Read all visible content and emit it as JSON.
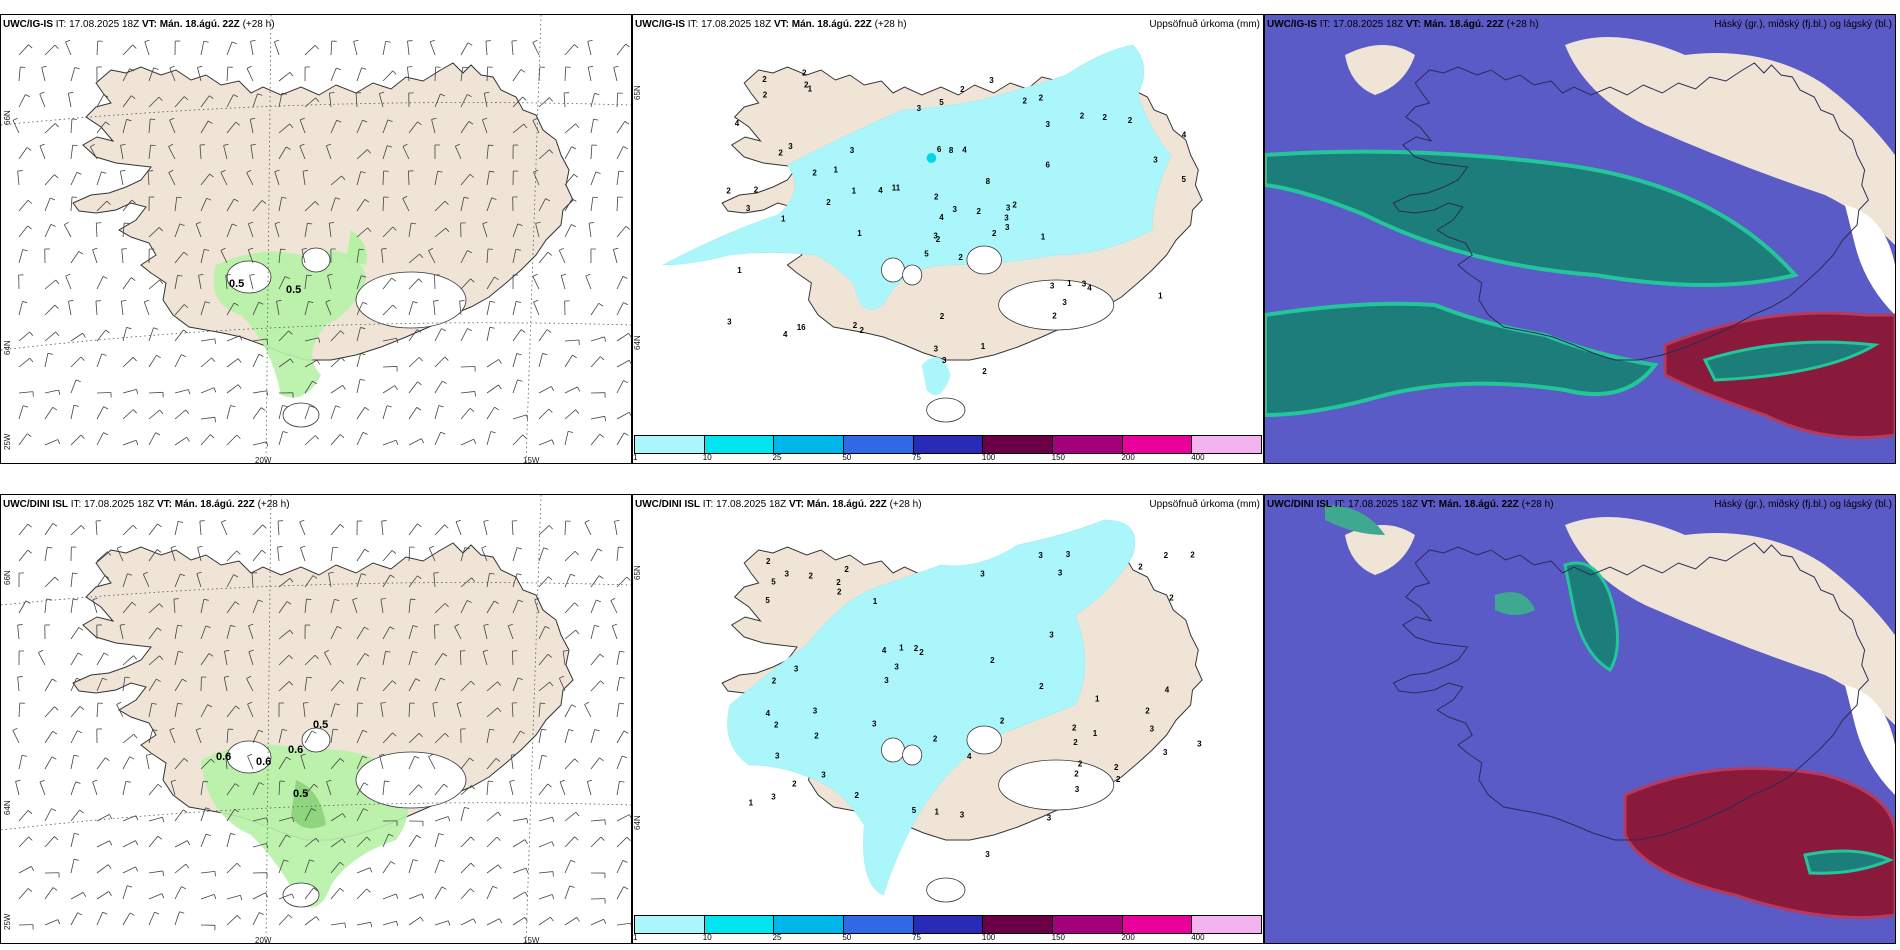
{
  "panels": {
    "top_wind": {
      "model": "UWC/IG-IS",
      "init": "IT: 17.08.2025 18Z",
      "valid": "VT: Mán. 18.ágú. 22Z",
      "lead": "(+28 h)",
      "lon_labels": [
        "20W",
        "15W"
      ],
      "lat_labels": [
        "66N",
        "64N",
        "25W"
      ],
      "values": [
        "0.5",
        "0.5"
      ]
    },
    "top_precip": {
      "model": "UWC/IG-IS",
      "init": "IT: 17.08.2025 18Z",
      "valid": "VT: Mán. 18.ágú. 22Z",
      "lead": "(+28 h)",
      "right_title": "Uppsöfnuð úrkoma (mm)",
      "lat_labels": [
        "65N",
        "64N"
      ],
      "values": [
        "2",
        "2",
        "2",
        "3",
        "2",
        "2",
        "4",
        "3",
        "2",
        "1",
        "1",
        "4",
        "5",
        "6",
        "6",
        "8",
        "16",
        "11",
        "8",
        "2",
        "4",
        "3",
        "5",
        "3",
        "3",
        "5",
        "3",
        "3",
        "4",
        "3",
        "2",
        "2",
        "3",
        "3",
        "4",
        "2",
        "2",
        "2",
        "3",
        "3",
        "3",
        "4",
        "3",
        "4",
        "3",
        "2",
        "2",
        "1",
        "2",
        "2",
        "1",
        "2",
        "1",
        "2",
        "2",
        "2",
        "3",
        "3",
        "3",
        "2",
        "1",
        "1",
        "2",
        "2",
        "1",
        "2",
        "2",
        "2",
        "1",
        "1"
      ]
    },
    "top_cloud": {
      "model": "UWC/IG-IS",
      "init": "IT: 17.08.2025 18Z",
      "valid": "VT: Mán. 18.ágú. 22Z",
      "lead": "(+28 h)",
      "right_title": "Háský (gr.), miðský (fj.bl.) og lágský (bl.)"
    },
    "bottom_wind": {
      "model": "UWC/DINI ISL",
      "init": "IT: 17.08.2025 18Z",
      "valid": "VT: Mán. 18.ágú. 22Z",
      "lead": "(+28 h)",
      "lon_labels": [
        "20W",
        "15W"
      ],
      "lat_labels": [
        "66N",
        "64N",
        "25W"
      ],
      "values": [
        "0.6",
        "0.6",
        "0.6",
        "0.5",
        "0.5"
      ]
    },
    "bottom_precip": {
      "model": "UWC/DINI ISL",
      "init": "IT: 17.08.2025 18Z",
      "valid": "VT: Mán. 18.ágú. 22Z",
      "lead": "(+28 h)",
      "right_title": "Uppsöfnuð úrkoma (mm)",
      "lat_labels": [
        "65N",
        "64N"
      ],
      "values": [
        "2",
        "3",
        "2",
        "2",
        "3",
        "3",
        "4",
        "5",
        "4",
        "5",
        "5",
        "4",
        "4",
        "2",
        "2",
        "3",
        "2",
        "2",
        "3",
        "3",
        "3",
        "2",
        "2",
        "2",
        "2",
        "1",
        "3",
        "3",
        "3",
        "3",
        "2",
        "2",
        "2",
        "3",
        "3",
        "2",
        "2",
        "3",
        "1",
        "2",
        "2",
        "1",
        "3",
        "2",
        "2",
        "3",
        "1",
        "2",
        "2",
        "3",
        "3",
        "2",
        "2",
        "2",
        "1",
        "1",
        "2",
        "3",
        "3",
        "3",
        "2"
      ]
    },
    "bottom_cloud": {
      "model": "UWC/DINI ISL",
      "init": "IT: 17.08.2025 18Z",
      "valid": "VT: Mán. 18.ágú. 22Z",
      "lead": "(+28 h)",
      "right_title": "Háský (gr.), miðský (fj.bl.) og lágský (bl.)"
    }
  },
  "colorbar": {
    "ticks": [
      "1",
      "10",
      "25",
      "50",
      "75",
      "100",
      "150",
      "200",
      "400"
    ],
    "colors": [
      "#aaf6fb",
      "#00e5f0",
      "#00b7ec",
      "#2f69e6",
      "#2a2ab8",
      "#6b0047",
      "#a5007e",
      "#ec009b",
      "#f2b3ee"
    ]
  },
  "colors": {
    "land": "#efe4d6",
    "precip_light": "#aaf6fb",
    "wind_green": "#b6f2a6",
    "cloud_low": "#5a5bc6",
    "cloud_mid": "#1d7d7a",
    "cloud_high": "#8a1a3c"
  }
}
